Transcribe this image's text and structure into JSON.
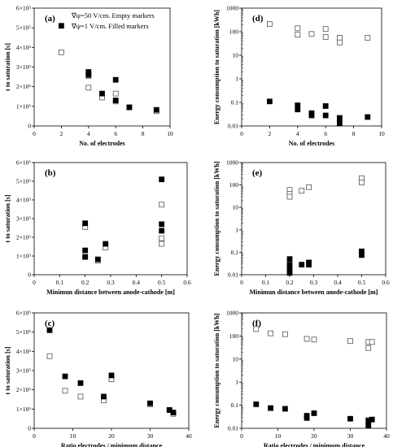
{
  "chart_data": [
    {
      "panel": "(a)",
      "type": "scatter",
      "scale": "linear",
      "xlabel": "No. of electrodes",
      "ylabel": "t to saturation [s]",
      "xlim": [
        0,
        10
      ],
      "xticks": [
        0,
        2,
        4,
        6,
        8,
        10
      ],
      "ylim": [
        0,
        600000
      ],
      "yticks": [
        0,
        100000,
        200000,
        300000,
        400000,
        500000,
        600000
      ],
      "yticklabels": [
        "0",
        "1×10⁵",
        "2×10⁵",
        "3×10⁵",
        "4×10⁵",
        "5×10⁵",
        "6×10⁵"
      ],
      "annotations": [
        "∇ψ=50 V/cm. Empty markers",
        "∇ψ=1 V/cm. Filled markers"
      ],
      "series": [
        {
          "marker": "empty",
          "x": [
            2,
            4,
            4,
            5,
            6,
            6,
            7,
            9
          ],
          "y": [
            375000,
            195000,
            255000,
            145000,
            165000,
            125000,
            95000,
            75000
          ]
        },
        {
          "marker": "filled",
          "x": [
            2,
            4,
            4,
            5,
            6,
            6,
            7,
            9
          ],
          "y": [
            510000,
            275000,
            260000,
            165000,
            235000,
            130000,
            95000,
            82000
          ]
        }
      ]
    },
    {
      "panel": "(d)",
      "type": "scatter",
      "scale": "log",
      "xlabel": "No. of electrodes",
      "ylabel": "Energy consumption to saturation [kWh]",
      "xlim": [
        0,
        10
      ],
      "xticks": [
        0,
        2,
        4,
        6,
        8,
        10
      ],
      "ylim": [
        0.01,
        1000
      ],
      "yticks": [
        0.01,
        0.1,
        1,
        10,
        100,
        1000
      ],
      "yticklabels": [
        "0.01",
        "0.1",
        "1",
        "10",
        "100",
        "1000"
      ],
      "series": [
        {
          "marker": "empty",
          "x": [
            2,
            4,
            4,
            5,
            6,
            6,
            7,
            7,
            9
          ],
          "y": [
            210,
            140,
            75,
            80,
            130,
            60,
            55,
            35,
            55
          ]
        },
        {
          "marker": "filled",
          "x": [
            2,
            4,
            4,
            5,
            5,
            6,
            6,
            7,
            7,
            9
          ],
          "y": [
            0.11,
            0.075,
            0.05,
            0.035,
            0.028,
            0.07,
            0.028,
            0.022,
            0.013,
            0.024
          ]
        }
      ]
    },
    {
      "panel": "(b)",
      "type": "scatter",
      "scale": "linear",
      "xlabel": "Minimun distance between anode-cathode [m]",
      "ylabel": "t to saturation [s]",
      "xlim": [
        0,
        0.6
      ],
      "xticks": [
        0,
        0.1,
        0.2,
        0.3,
        0.4,
        0.5,
        0.6
      ],
      "xticklabels": [
        "0",
        "0.1",
        "0.2",
        "0.3",
        "0.4",
        "0.5",
        "0.6"
      ],
      "ylim": [
        0,
        600000
      ],
      "yticks": [
        0,
        100000,
        200000,
        300000,
        400000,
        500000,
        600000
      ],
      "yticklabels": [
        "0",
        "1×10⁵",
        "2×10⁵",
        "3×10⁵",
        "4×10⁵",
        "5×10⁵",
        "6×10⁵"
      ],
      "series": [
        {
          "marker": "empty",
          "x": [
            0.2,
            0.2,
            0.25,
            0.28,
            0.5,
            0.5,
            0.5
          ],
          "y": [
            255000,
            95000,
            75000,
            145000,
            375000,
            195000,
            165000
          ]
        },
        {
          "marker": "filled",
          "x": [
            0.2,
            0.2,
            0.2,
            0.25,
            0.28,
            0.5,
            0.5,
            0.5
          ],
          "y": [
            275000,
            130000,
            95000,
            82000,
            165000,
            510000,
            270000,
            235000
          ]
        }
      ]
    },
    {
      "panel": "(e)",
      "type": "scatter",
      "scale": "log",
      "xlabel": "Minimun distance between anode-cathode [m]",
      "ylabel": "Energy consumption to saturation [kWh]",
      "xlim": [
        0,
        0.6
      ],
      "xticks": [
        0,
        0.1,
        0.2,
        0.3,
        0.4,
        0.5,
        0.6
      ],
      "xticklabels": [
        "0",
        "0.1",
        "0.2",
        "0.3",
        "0.4",
        "0.5",
        "0.6"
      ],
      "ylim": [
        0.01,
        1000
      ],
      "yticks": [
        0.01,
        0.1,
        1,
        10,
        100,
        1000
      ],
      "yticklabels": [
        "0.01",
        "0.1",
        "1",
        "10",
        "100",
        "1000"
      ],
      "series": [
        {
          "marker": "empty",
          "x": [
            0.2,
            0.2,
            0.2,
            0.25,
            0.28,
            0.5,
            0.5
          ],
          "y": [
            60,
            40,
            30,
            55,
            80,
            200,
            130
          ]
        },
        {
          "marker": "filled",
          "x": [
            0.2,
            0.2,
            0.2,
            0.2,
            0.25,
            0.28,
            0.28,
            0.5,
            0.5
          ],
          "y": [
            0.05,
            0.028,
            0.018,
            0.012,
            0.028,
            0.035,
            0.028,
            0.11,
            0.075
          ]
        }
      ]
    },
    {
      "panel": "(c)",
      "type": "scatter",
      "scale": "linear",
      "xlabel": "Ratio electrodes / minimum distance",
      "ylabel": "t to saturation [s]",
      "xlim": [
        0,
        40
      ],
      "xticks": [
        0,
        10,
        20,
        30,
        40
      ],
      "ylim": [
        0,
        600000
      ],
      "yticks": [
        0,
        100000,
        200000,
        300000,
        400000,
        500000,
        600000
      ],
      "yticklabels": [
        "0",
        "1×10⁵",
        "2×10⁵",
        "3×10⁵",
        "4×10⁵",
        "5×10⁵",
        "6×10⁵"
      ],
      "series": [
        {
          "marker": "empty",
          "x": [
            4,
            8,
            12,
            18,
            20,
            30,
            35,
            36
          ],
          "y": [
            375000,
            195000,
            165000,
            145000,
            255000,
            125000,
            95000,
            75000
          ]
        },
        {
          "marker": "filled",
          "x": [
            4,
            8,
            12,
            18,
            20,
            30,
            35,
            36
          ],
          "y": [
            510000,
            270000,
            235000,
            165000,
            275000,
            130000,
            95000,
            82000
          ]
        }
      ]
    },
    {
      "panel": "(f)",
      "type": "scatter",
      "scale": "log",
      "xlabel": "Ratio electrodes / minimum distance",
      "ylabel": "Energy consumption to saturation [kWh]",
      "xlim": [
        0,
        40
      ],
      "xticks": [
        0,
        10,
        20,
        30,
        40
      ],
      "ylim": [
        0.01,
        1000
      ],
      "yticks": [
        0.01,
        0.1,
        1,
        10,
        100,
        1000
      ],
      "yticklabels": [
        "0.01",
        "0.1",
        "1",
        "10",
        "100",
        "1000"
      ],
      "series": [
        {
          "marker": "empty",
          "x": [
            4,
            8,
            12,
            18,
            20,
            30,
            35,
            35,
            36
          ],
          "y": [
            200,
            130,
            120,
            75,
            70,
            60,
            55,
            30,
            55
          ]
        },
        {
          "marker": "filled",
          "x": [
            4,
            8,
            12,
            18,
            18,
            20,
            30,
            35,
            35,
            36
          ],
          "y": [
            0.11,
            0.075,
            0.07,
            0.035,
            0.028,
            0.045,
            0.026,
            0.022,
            0.013,
            0.024
          ]
        }
      ]
    }
  ]
}
